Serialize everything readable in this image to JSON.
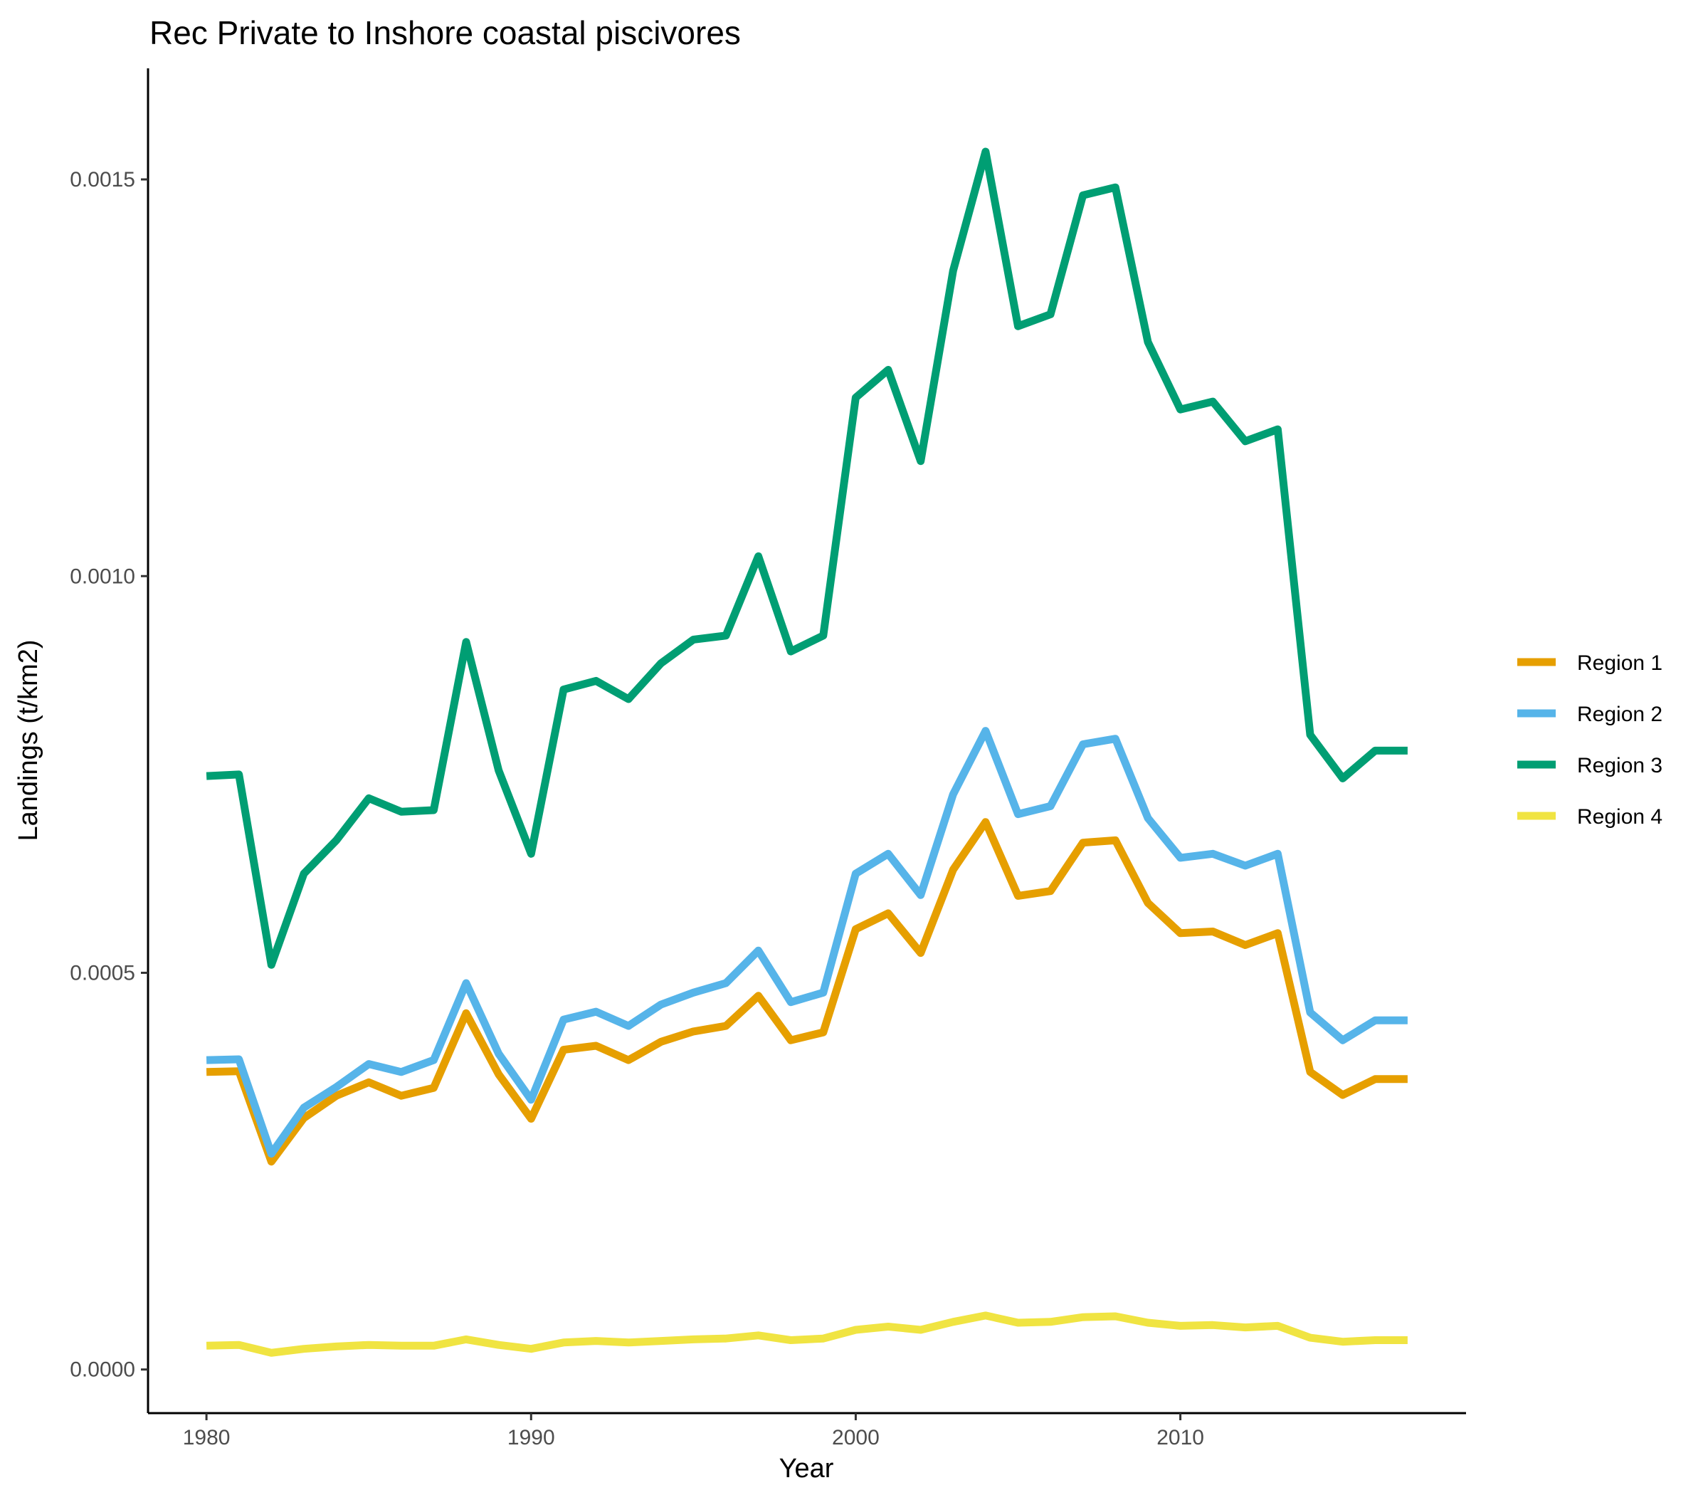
{
  "chart_data": {
    "type": "line",
    "title": "Rec Private to Inshore coastal piscivores",
    "xlabel": "Year",
    "ylabel": "Landings (t/km2)",
    "xlim": [
      1978.2,
      2018.8
    ],
    "ylim": [
      -5.5e-05,
      0.00164
    ],
    "xticks": [
      1980,
      1990,
      2000,
      2010
    ],
    "xtick_labels": [
      "1980",
      "1990",
      "2000",
      "2010"
    ],
    "yticks": [
      0,
      0.0005,
      0.001,
      0.0015
    ],
    "ytick_labels": [
      "0.0000",
      "0.0005",
      "0.0010",
      "0.0015"
    ],
    "grid": false,
    "legend_position": "right",
    "x": [
      1980,
      1981,
      1982,
      1983,
      1984,
      1985,
      1986,
      1987,
      1988,
      1989,
      1990,
      1991,
      1992,
      1993,
      1994,
      1995,
      1996,
      1997,
      1998,
      1999,
      2000,
      2001,
      2002,
      2003,
      2004,
      2005,
      2006,
      2007,
      2008,
      2009,
      2010,
      2011,
      2012,
      2013,
      2014,
      2015,
      2016,
      2017
    ],
    "series": [
      {
        "name": "Region 1",
        "color": "#E69F00",
        "values": [
          0.000375,
          0.000376,
          0.000262,
          0.000317,
          0.000345,
          0.000362,
          0.000345,
          0.000355,
          0.000449,
          0.000372,
          0.000316,
          0.000403,
          0.000408,
          0.00039,
          0.000413,
          0.000426,
          0.000433,
          0.000471,
          0.000415,
          0.000425,
          0.000555,
          0.000575,
          0.000525,
          0.00063,
          0.00069,
          0.000597,
          0.000603,
          0.000664,
          0.000667,
          0.000588,
          0.00055,
          0.000552,
          0.000535,
          0.00055,
          0.000375,
          0.000346,
          0.000366,
          0.000366
        ]
      },
      {
        "name": "Region 2",
        "color": "#56B4E9",
        "values": [
          0.00039,
          0.000391,
          0.000272,
          0.00033,
          0.000356,
          0.000385,
          0.000375,
          0.00039,
          0.000487,
          0.000398,
          0.00034,
          0.000441,
          0.000451,
          0.000433,
          0.00046,
          0.000475,
          0.000487,
          0.000528,
          0.000463,
          0.000475,
          0.000625,
          0.00065,
          0.000598,
          0.000725,
          0.000805,
          0.0007,
          0.00071,
          0.000788,
          0.000795,
          0.000695,
          0.000645,
          0.00065,
          0.000635,
          0.00065,
          0.00045,
          0.000415,
          0.00044,
          0.00044
        ]
      },
      {
        "name": "Region 3",
        "color": "#009E73",
        "values": [
          0.000748,
          0.00075,
          0.00051,
          0.000625,
          0.000667,
          0.00072,
          0.000703,
          0.000705,
          0.000917,
          0.000755,
          0.00065,
          0.000857,
          0.000868,
          0.000845,
          0.00089,
          0.00092,
          0.000925,
          0.001025,
          0.000905,
          0.000925,
          0.001225,
          0.00126,
          0.001145,
          0.001385,
          0.001535,
          0.001315,
          0.00133,
          0.00148,
          0.00149,
          0.001295,
          0.00121,
          0.00122,
          0.00117,
          0.001185,
          0.0008,
          0.000745,
          0.00078,
          0.00078
        ]
      },
      {
        "name": "Region 4",
        "color": "#F0E442",
        "values": [
          3e-05,
          3.1e-05,
          2.1e-05,
          2.6e-05,
          2.9e-05,
          3.1e-05,
          3e-05,
          3e-05,
          3.8e-05,
          3.1e-05,
          2.6e-05,
          3.4e-05,
          3.6e-05,
          3.4e-05,
          3.6e-05,
          3.8e-05,
          3.9e-05,
          4.3e-05,
          3.7e-05,
          3.9e-05,
          5e-05,
          5.4e-05,
          5e-05,
          6e-05,
          6.8e-05,
          5.9e-05,
          6e-05,
          6.6e-05,
          6.7e-05,
          5.9e-05,
          5.5e-05,
          5.6e-05,
          5.3e-05,
          5.5e-05,
          4e-05,
          3.5e-05,
          3.7e-05,
          3.7e-05
        ]
      }
    ]
  }
}
